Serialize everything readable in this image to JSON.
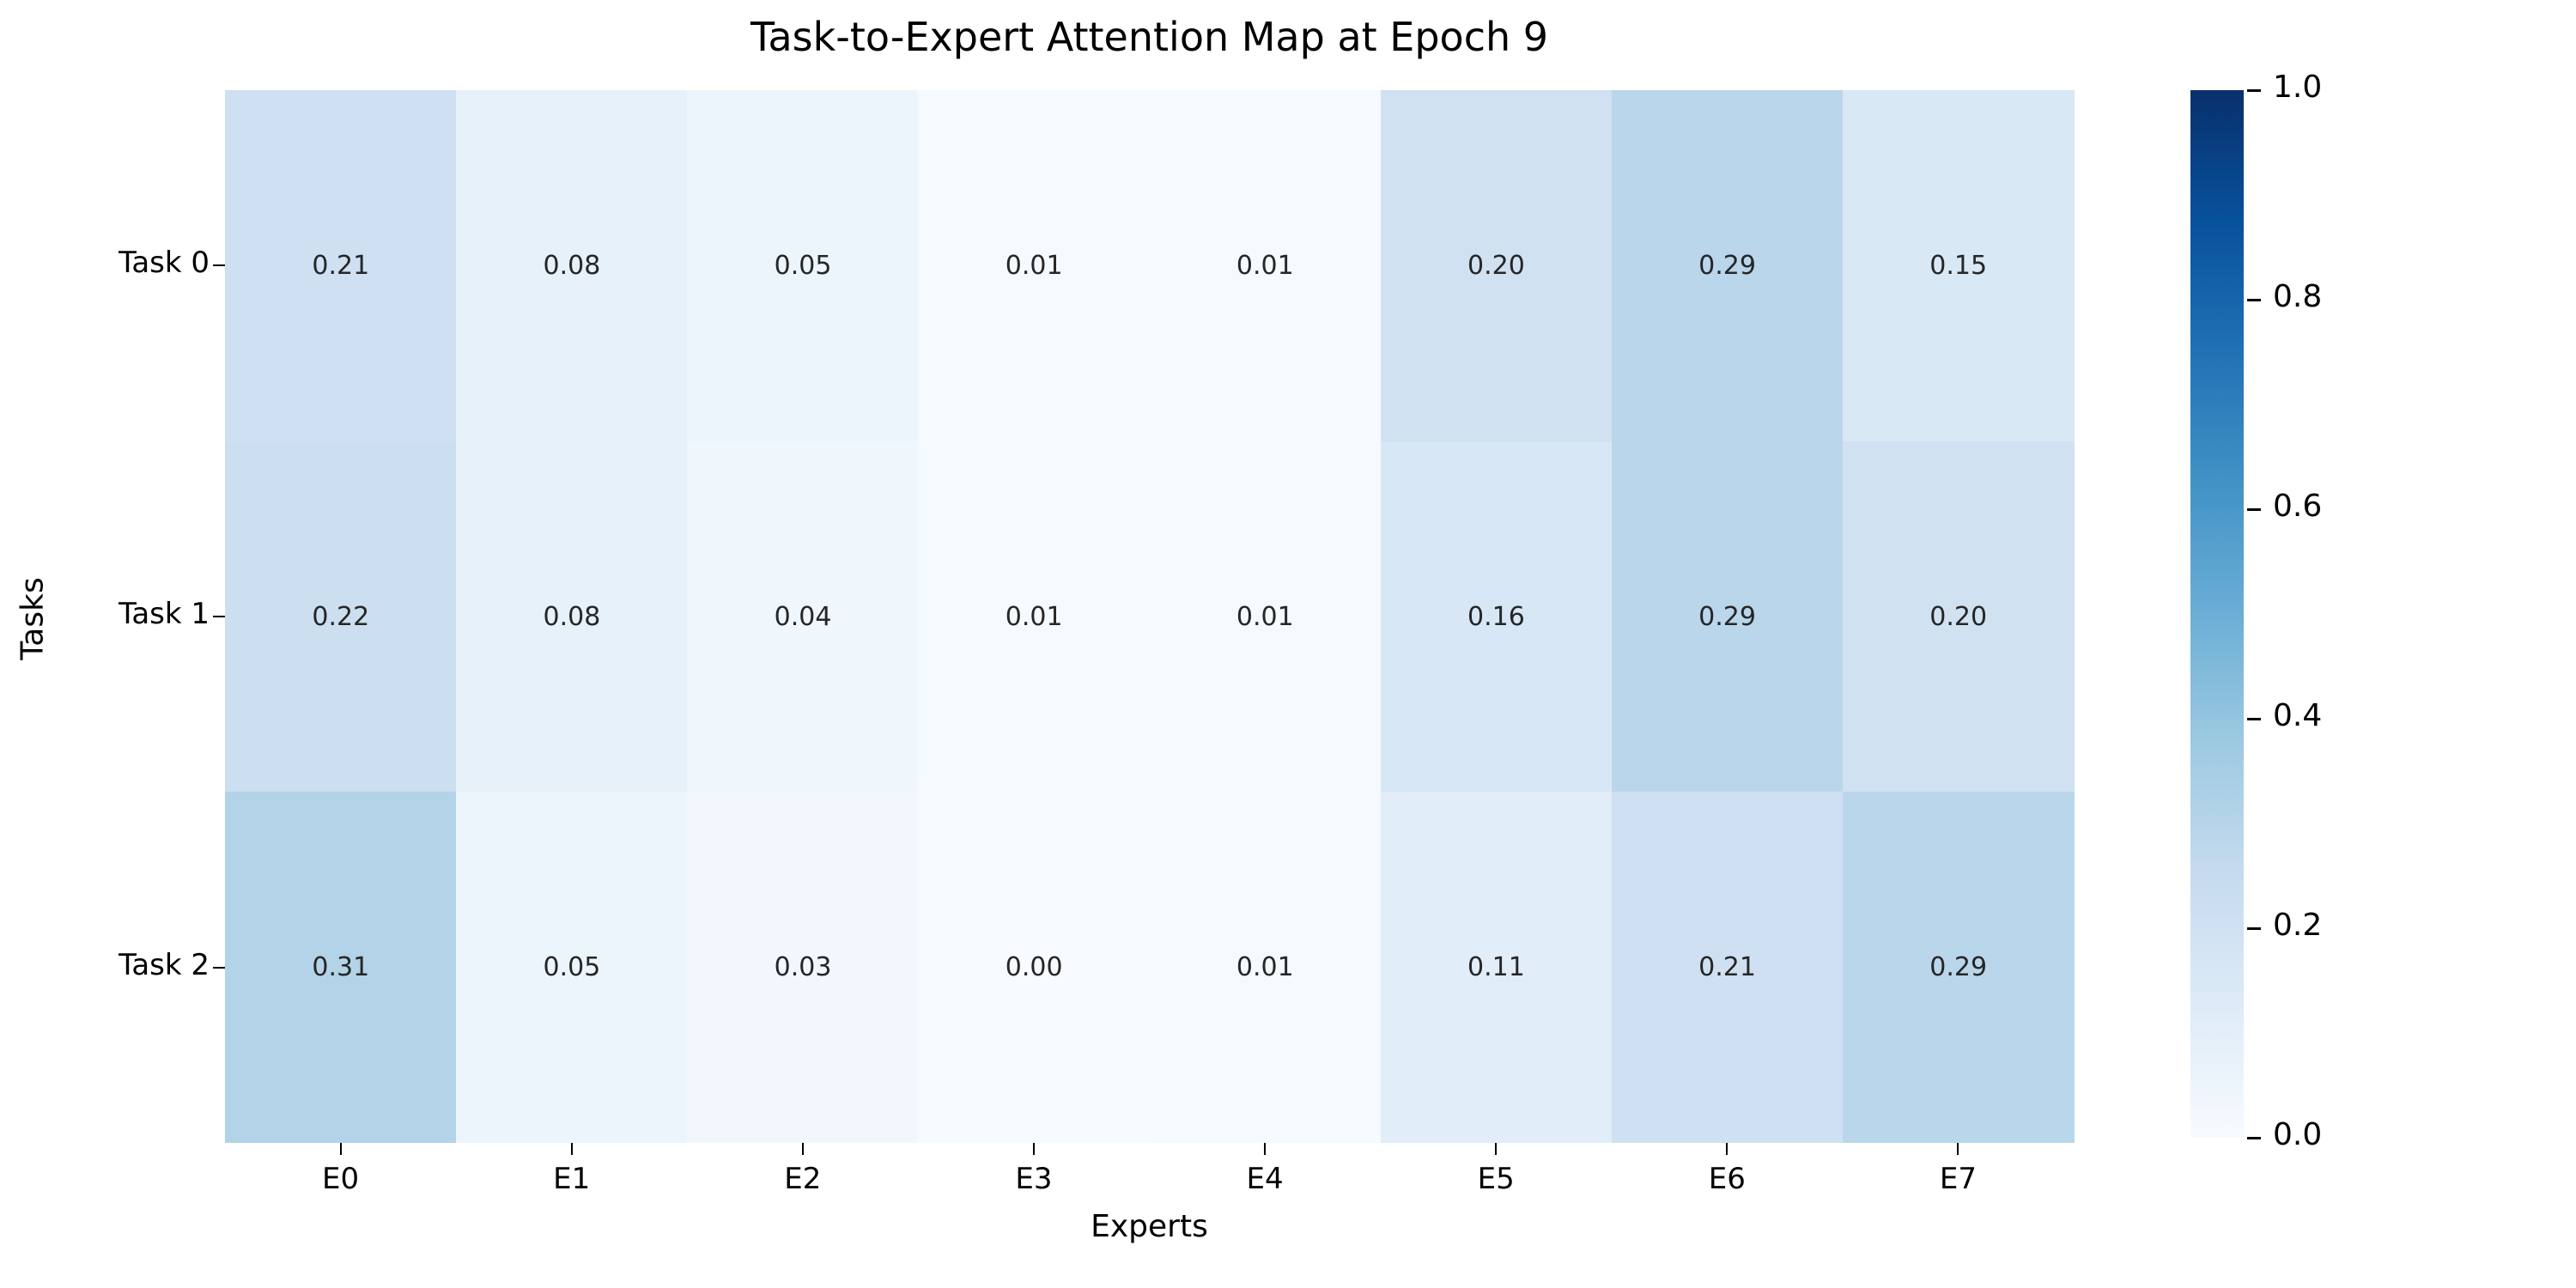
{
  "chart_data": {
    "type": "heatmap",
    "title": "Task-to-Expert Attention Map at Epoch 9",
    "xlabel": "Experts",
    "ylabel": "Tasks",
    "x_categories": [
      "E0",
      "E1",
      "E2",
      "E3",
      "E4",
      "E5",
      "E6",
      "E7"
    ],
    "y_categories": [
      "Task 0",
      "Task 1",
      "Task 2"
    ],
    "values": [
      [
        0.21,
        0.08,
        0.05,
        0.01,
        0.01,
        0.2,
        0.29,
        0.15
      ],
      [
        0.22,
        0.08,
        0.04,
        0.01,
        0.01,
        0.16,
        0.29,
        0.2
      ],
      [
        0.31,
        0.05,
        0.03,
        0.0,
        0.01,
        0.11,
        0.21,
        0.29
      ]
    ],
    "value_decimals": 2,
    "annotation_color": "#262626",
    "background_color": "#ffffff",
    "grid": false,
    "colormap": {
      "name": "Blues",
      "vmin": 0.0,
      "vmax": 1.0,
      "anchors": [
        {
          "pos": 0.0,
          "color": "#f7fbff"
        },
        {
          "pos": 0.125,
          "color": "#deebf7"
        },
        {
          "pos": 0.25,
          "color": "#c6dbef"
        },
        {
          "pos": 0.375,
          "color": "#9ecae1"
        },
        {
          "pos": 0.5,
          "color": "#6baed6"
        },
        {
          "pos": 0.625,
          "color": "#4292c6"
        },
        {
          "pos": 0.75,
          "color": "#2171b5"
        },
        {
          "pos": 0.875,
          "color": "#08519c"
        },
        {
          "pos": 1.0,
          "color": "#08306b"
        }
      ]
    },
    "colorbar": {
      "position": "right",
      "tick_labels": [
        "1.0",
        "0.8",
        "0.6",
        "0.4",
        "0.2",
        "0.0"
      ]
    }
  }
}
